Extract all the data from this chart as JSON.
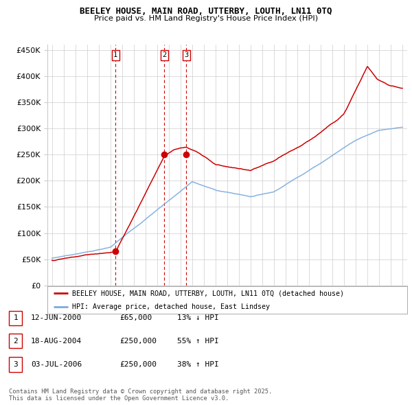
{
  "title": "BEELEY HOUSE, MAIN ROAD, UTTERBY, LOUTH, LN11 0TQ",
  "subtitle": "Price paid vs. HM Land Registry's House Price Index (HPI)",
  "legend_line1": "BEELEY HOUSE, MAIN ROAD, UTTERBY, LOUTH, LN11 0TQ (detached house)",
  "legend_line2": "HPI: Average price, detached house, East Lindsey",
  "footnote": "Contains HM Land Registry data © Crown copyright and database right 2025.\nThis data is licensed under the Open Government Licence v3.0.",
  "transactions": [
    {
      "num": 1,
      "date": "12-JUN-2000",
      "price": "£65,000",
      "change": "13% ↓ HPI"
    },
    {
      "num": 2,
      "date": "18-AUG-2004",
      "price": "£250,000",
      "change": "55% ↑ HPI"
    },
    {
      "num": 3,
      "date": "03-JUL-2006",
      "price": "£250,000",
      "change": "38% ↑ HPI"
    }
  ],
  "vline_years": [
    2000.44,
    2004.62,
    2006.5
  ],
  "vline_color": "#cc0000",
  "red_line_color": "#cc0000",
  "blue_line_color": "#7aaadd",
  "ylim": [
    0,
    460000
  ],
  "yticks": [
    0,
    50000,
    100000,
    150000,
    200000,
    250000,
    300000,
    350000,
    400000,
    450000
  ],
  "xlim_start": 1994.6,
  "xlim_end": 2025.4,
  "background_color": "#ffffff",
  "grid_color": "#cccccc"
}
